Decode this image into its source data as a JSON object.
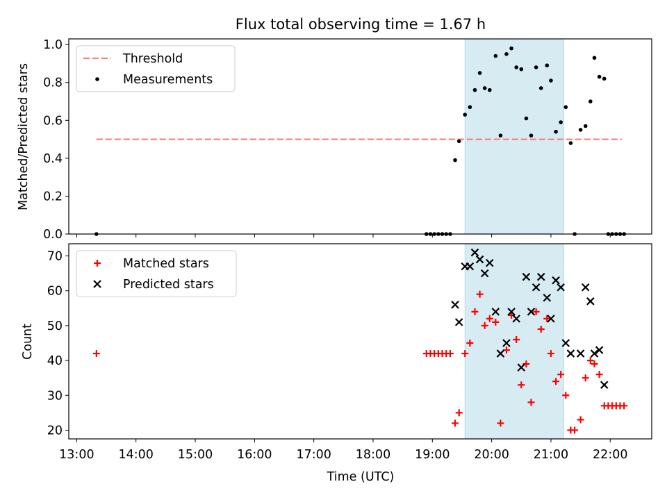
{
  "title": "Flux total observing time = 1.67 h",
  "colors": {
    "threshold": "#ff7f7f",
    "measurements": "#000000",
    "matched": "#ff0000",
    "predicted": "#000000",
    "window_fill": "#add8e6"
  },
  "chart_data": [
    {
      "type": "scatter",
      "ylabel": "Matched/Predicted stars",
      "ylim": [
        0,
        1.03
      ],
      "yticks": [
        0.0,
        0.2,
        0.4,
        0.6,
        0.8,
        1.0
      ],
      "ytick_labels": [
        "0.0",
        "0.2",
        "0.4",
        "0.6",
        "0.8",
        "1.0"
      ],
      "xlim": [
        "12:52",
        "22:42"
      ],
      "observing_window": [
        "19:33",
        "21:13"
      ],
      "legend": {
        "placement": "top-left",
        "entries": [
          "Threshold",
          "Measurements"
        ]
      },
      "threshold": {
        "name": "Threshold",
        "y": 0.5,
        "x_range": [
          "13:20",
          "22:12"
        ]
      },
      "series": [
        {
          "name": "Measurements",
          "points": [
            [
              "13:20",
              0.0
            ],
            [
              "18:54",
              0.0
            ],
            [
              "18:58",
              0.0
            ],
            [
              "19:02",
              0.0
            ],
            [
              "19:06",
              0.0
            ],
            [
              "19:10",
              0.0
            ],
            [
              "19:14",
              0.0
            ],
            [
              "19:18",
              0.0
            ],
            [
              "19:23",
              0.39
            ],
            [
              "19:27",
              0.49
            ],
            [
              "19:33",
              0.63
            ],
            [
              "19:38",
              0.67
            ],
            [
              "19:43",
              0.76
            ],
            [
              "19:48",
              0.85
            ],
            [
              "19:53",
              0.77
            ],
            [
              "19:58",
              0.76
            ],
            [
              "20:04",
              0.94
            ],
            [
              "20:09",
              0.52
            ],
            [
              "20:15",
              0.95
            ],
            [
              "20:20",
              0.98
            ],
            [
              "20:25",
              0.88
            ],
            [
              "20:30",
              0.87
            ],
            [
              "20:35",
              0.61
            ],
            [
              "20:40",
              0.52
            ],
            [
              "20:45",
              0.88
            ],
            [
              "20:50",
              0.77
            ],
            [
              "20:56",
              0.89
            ],
            [
              "21:00",
              0.81
            ],
            [
              "21:05",
              0.54
            ],
            [
              "21:10",
              0.59
            ],
            [
              "21:15",
              0.67
            ],
            [
              "21:20",
              0.48
            ],
            [
              "21:24",
              0.0
            ],
            [
              "21:30",
              0.55
            ],
            [
              "21:35",
              0.57
            ],
            [
              "21:40",
              0.7
            ],
            [
              "21:44",
              0.93
            ],
            [
              "21:49",
              0.83
            ],
            [
              "21:54",
              0.82
            ],
            [
              "21:58",
              0.0
            ],
            [
              "22:02",
              0.0
            ],
            [
              "22:06",
              0.0
            ],
            [
              "22:10",
              0.0
            ],
            [
              "22:14",
              0.0
            ]
          ]
        }
      ]
    },
    {
      "type": "scatter",
      "ylabel": "Count",
      "xlabel": "Time (UTC)",
      "ylim": [
        17.5,
        73.5
      ],
      "yticks": [
        20,
        30,
        40,
        50,
        60,
        70
      ],
      "ytick_labels": [
        "20",
        "30",
        "40",
        "50",
        "60",
        "70"
      ],
      "xlim": [
        "12:52",
        "22:42"
      ],
      "xticks": [
        "13:00",
        "14:00",
        "15:00",
        "16:00",
        "17:00",
        "18:00",
        "19:00",
        "20:00",
        "21:00",
        "22:00"
      ],
      "observing_window": [
        "19:33",
        "21:13"
      ],
      "legend": {
        "placement": "top-left",
        "entries": [
          "Matched stars",
          "Predicted stars"
        ]
      },
      "series": [
        {
          "name": "Matched stars",
          "marker": "+",
          "points": [
            [
              "13:20",
              42
            ],
            [
              "18:54",
              42
            ],
            [
              "18:58",
              42
            ],
            [
              "19:02",
              42
            ],
            [
              "19:06",
              42
            ],
            [
              "19:10",
              42
            ],
            [
              "19:14",
              42
            ],
            [
              "19:18",
              42
            ],
            [
              "19:23",
              22
            ],
            [
              "19:27",
              25
            ],
            [
              "19:33",
              42
            ],
            [
              "19:38",
              45
            ],
            [
              "19:43",
              54
            ],
            [
              "19:48",
              59
            ],
            [
              "19:53",
              50
            ],
            [
              "19:58",
              52
            ],
            [
              "20:04",
              51
            ],
            [
              "20:09",
              22
            ],
            [
              "20:15",
              43
            ],
            [
              "20:20",
              53
            ],
            [
              "20:25",
              46
            ],
            [
              "20:30",
              33
            ],
            [
              "20:35",
              39
            ],
            [
              "20:40",
              28
            ],
            [
              "20:45",
              54
            ],
            [
              "20:50",
              49
            ],
            [
              "20:56",
              52
            ],
            [
              "21:00",
              42
            ],
            [
              "21:05",
              34
            ],
            [
              "21:10",
              36
            ],
            [
              "21:15",
              30
            ],
            [
              "21:20",
              20
            ],
            [
              "21:24",
              20
            ],
            [
              "21:30",
              23
            ],
            [
              "21:35",
              35
            ],
            [
              "21:40",
              40
            ],
            [
              "21:44",
              39
            ],
            [
              "21:49",
              36
            ],
            [
              "21:54",
              27
            ],
            [
              "21:58",
              27
            ],
            [
              "22:02",
              27
            ],
            [
              "22:06",
              27
            ],
            [
              "22:10",
              27
            ],
            [
              "22:14",
              27
            ]
          ]
        },
        {
          "name": "Predicted stars",
          "marker": "x",
          "points": [
            [
              "19:23",
              56
            ],
            [
              "19:27",
              51
            ],
            [
              "19:33",
              67
            ],
            [
              "19:38",
              67
            ],
            [
              "19:43",
              71
            ],
            [
              "19:48",
              69
            ],
            [
              "19:53",
              65
            ],
            [
              "19:58",
              68
            ],
            [
              "20:04",
              54
            ],
            [
              "20:09",
              42
            ],
            [
              "20:15",
              45
            ],
            [
              "20:20",
              54
            ],
            [
              "20:25",
              52
            ],
            [
              "20:30",
              38
            ],
            [
              "20:35",
              64
            ],
            [
              "20:40",
              54
            ],
            [
              "20:45",
              61
            ],
            [
              "20:50",
              64
            ],
            [
              "20:56",
              58
            ],
            [
              "21:00",
              52
            ],
            [
              "21:05",
              63
            ],
            [
              "21:10",
              61
            ],
            [
              "21:15",
              45
            ],
            [
              "21:20",
              42
            ],
            [
              "21:30",
              42
            ],
            [
              "21:35",
              61
            ],
            [
              "21:40",
              57
            ],
            [
              "21:44",
              42
            ],
            [
              "21:49",
              43
            ],
            [
              "21:54",
              33
            ]
          ]
        }
      ]
    }
  ]
}
